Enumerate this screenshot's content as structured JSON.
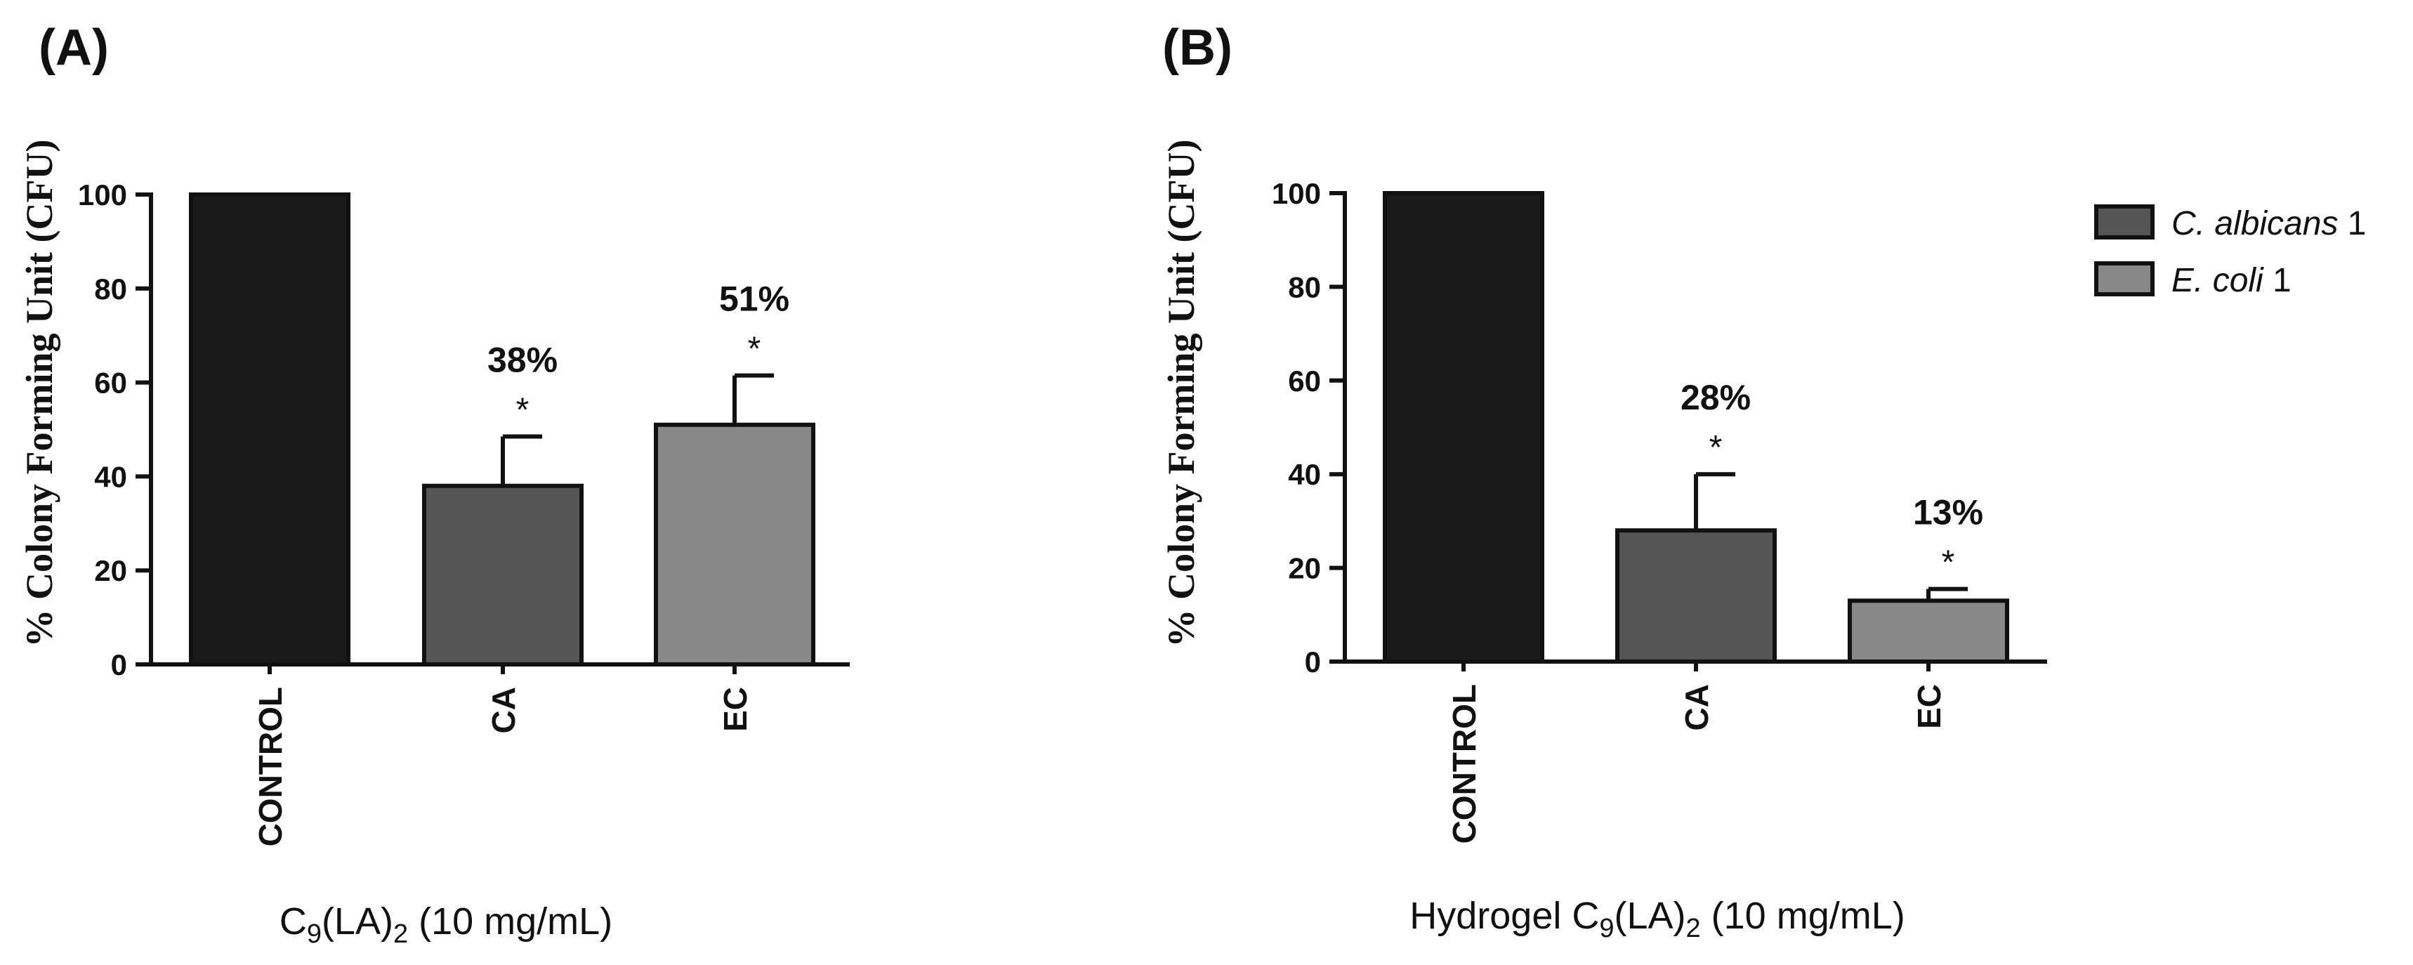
{
  "chart_data": [
    {
      "type": "bar",
      "panel_label": "(A)",
      "categories": [
        "CONTROL",
        "CA",
        "EC"
      ],
      "values": [
        100,
        38,
        51
      ],
      "errors": [
        0,
        10.5,
        10.5
      ],
      "bar_colors": [
        "#1a1a1a",
        "#555555",
        "#888888"
      ],
      "annotations": [
        "",
        "38%",
        "51%"
      ],
      "significance": [
        "",
        "*",
        "*"
      ],
      "ylabel": "% Colony Forming Unit (CFU)",
      "xlabel_main": "C",
      "xlabel_sub1": "9",
      "xlabel_mid": "(LA)",
      "xlabel_sub2": "2",
      "xlabel_tail": " (10 mg/mL)",
      "ylim": [
        0,
        100
      ],
      "yticks": [
        "0",
        "20",
        "40",
        "60",
        "80",
        "100"
      ]
    },
    {
      "type": "bar",
      "panel_label": "(B)",
      "categories": [
        "CONTROL",
        "CA",
        "EC"
      ],
      "values": [
        100,
        28,
        13
      ],
      "errors": [
        0,
        12,
        2.5
      ],
      "bar_colors": [
        "#1a1a1a",
        "#555555",
        "#888888"
      ],
      "annotations": [
        "",
        "28%",
        "13%"
      ],
      "significance": [
        "",
        "*",
        "*"
      ],
      "ylabel": "% Colony Forming Unit (CFU)",
      "xlabel_main": "Hydrogel C",
      "xlabel_sub1": "9",
      "xlabel_mid": "(LA)",
      "xlabel_sub2": "2",
      "xlabel_tail": " (10 mg/mL)",
      "ylim": [
        0,
        100
      ],
      "yticks": [
        "0",
        "20",
        "40",
        "60",
        "80",
        "100"
      ]
    }
  ],
  "legend": {
    "placement": "top-right",
    "items": [
      {
        "italic": "C. albicans",
        "suffix": " 1",
        "color": "#555555"
      },
      {
        "italic": "E. coli",
        "suffix": " 1",
        "color": "#888888"
      }
    ]
  }
}
